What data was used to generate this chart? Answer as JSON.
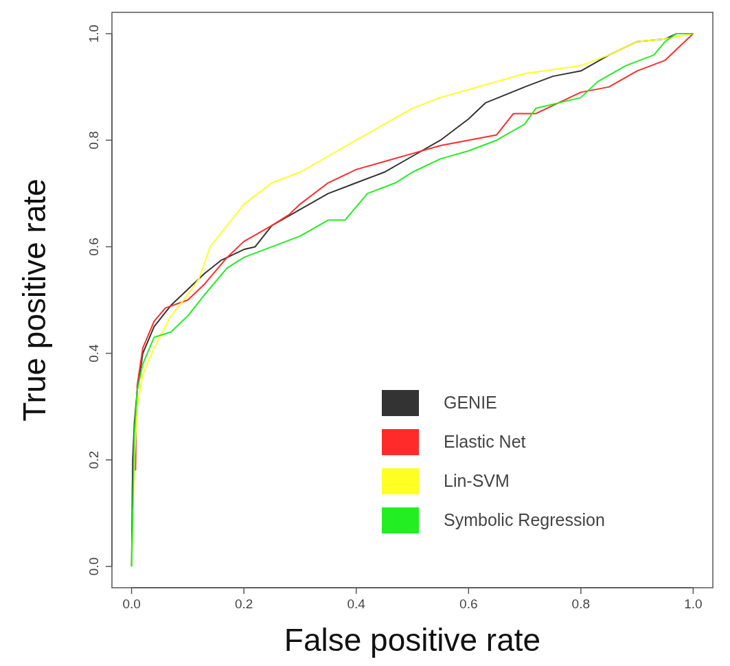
{
  "chart_data": {
    "type": "line",
    "xlabel": "False positive rate",
    "ylabel": "True positive rate",
    "xlim": [
      -0.035,
      1.035
    ],
    "ylim": [
      -0.04,
      1.04
    ],
    "xticks": [
      {
        "value": 0,
        "label": "0.0"
      },
      0.2,
      0.4,
      0.6,
      0.8,
      {
        "value": 1,
        "label": "1.0"
      }
    ],
    "yticks": [
      {
        "value": 0,
        "label": "0.0"
      },
      0.2,
      0.4,
      0.6,
      0.8,
      {
        "value": 1,
        "label": "1.0"
      }
    ],
    "legend": "bottom right",
    "grid": false,
    "marker": "none",
    "line_style": "solid",
    "series": [
      {
        "name": "GENIE",
        "color": "#333333",
        "x": [
          0,
          0.002,
          0.005,
          0.01,
          0.02,
          0.04,
          0.07,
          0.1,
          0.13,
          0.16,
          0.2,
          0.22,
          0.25,
          0.3,
          0.35,
          0.4,
          0.45,
          0.5,
          0.55,
          0.6,
          0.63,
          0.7,
          0.75,
          0.8,
          0.85,
          0.9,
          0.95,
          0.97,
          1
        ],
        "values": [
          0,
          0.2,
          0.27,
          0.33,
          0.4,
          0.45,
          0.49,
          0.52,
          0.55,
          0.575,
          0.595,
          0.6,
          0.64,
          0.67,
          0.7,
          0.72,
          0.74,
          0.77,
          0.8,
          0.84,
          0.87,
          0.9,
          0.92,
          0.93,
          0.96,
          0.985,
          0.99,
          1,
          1
        ]
      },
      {
        "name": "Elastic Net",
        "color": "#ff2a2a",
        "x": [
          0.007,
          0.008,
          0.01,
          0.02,
          0.04,
          0.06,
          0.1,
          0.13,
          0.17,
          0.2,
          0.25,
          0.28,
          0.3,
          0.35,
          0.4,
          0.45,
          0.5,
          0.55,
          0.6,
          0.65,
          0.68,
          0.72,
          0.8,
          0.85,
          0.9,
          0.95,
          0.97,
          1
        ],
        "values": [
          0.18,
          0.26,
          0.34,
          0.41,
          0.46,
          0.485,
          0.5,
          0.53,
          0.58,
          0.61,
          0.64,
          0.66,
          0.68,
          0.72,
          0.745,
          0.76,
          0.775,
          0.79,
          0.8,
          0.81,
          0.85,
          0.85,
          0.89,
          0.9,
          0.93,
          0.95,
          0.97,
          1
        ]
      },
      {
        "name": "Lin-SVM",
        "color": "#ffff22",
        "x": [
          0,
          0.005,
          0.01,
          0.02,
          0.04,
          0.07,
          0.1,
          0.12,
          0.14,
          0.17,
          0.2,
          0.25,
          0.3,
          0.35,
          0.4,
          0.45,
          0.5,
          0.55,
          0.6,
          0.65,
          0.7,
          0.8,
          0.85,
          0.9,
          0.95,
          1
        ],
        "values": [
          0,
          0.2,
          0.3,
          0.36,
          0.41,
          0.47,
          0.51,
          0.54,
          0.6,
          0.64,
          0.68,
          0.72,
          0.74,
          0.77,
          0.8,
          0.83,
          0.86,
          0.88,
          0.895,
          0.91,
          0.925,
          0.94,
          0.96,
          0.985,
          0.99,
          1
        ]
      },
      {
        "name": "Symbolic Regression",
        "color": "#22ee22",
        "x": [
          0,
          0.002,
          0.005,
          0.01,
          0.02,
          0.04,
          0.07,
          0.1,
          0.13,
          0.17,
          0.2,
          0.25,
          0.3,
          0.35,
          0.38,
          0.42,
          0.47,
          0.5,
          0.55,
          0.6,
          0.65,
          0.7,
          0.72,
          0.8,
          0.83,
          0.88,
          0.93,
          0.95,
          0.97,
          1
        ],
        "values": [
          0,
          0.1,
          0.25,
          0.33,
          0.38,
          0.43,
          0.44,
          0.47,
          0.51,
          0.56,
          0.58,
          0.6,
          0.62,
          0.65,
          0.65,
          0.7,
          0.72,
          0.74,
          0.765,
          0.78,
          0.8,
          0.83,
          0.86,
          0.88,
          0.91,
          0.94,
          0.96,
          0.985,
          1,
          1
        ]
      }
    ]
  }
}
